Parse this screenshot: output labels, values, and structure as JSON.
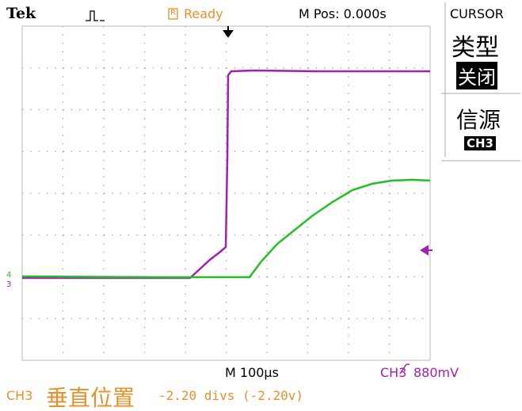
{
  "header": {
    "brand": "Tek",
    "run_icon": "R",
    "status": "Ready",
    "position": "M Pos: 0.000s"
  },
  "menu": {
    "title": "CURSOR",
    "items": [
      {
        "label": "类型",
        "value": "关闭"
      },
      {
        "label": "信源",
        "value": "CH3"
      }
    ]
  },
  "markers": {
    "ch4": "4",
    "ch3": "3"
  },
  "footer": {
    "timebase": "M 100µs",
    "trigger_channel": "CH3",
    "trigger_level": "880mV",
    "channel": "CH3",
    "setting": "垂直位置",
    "value": "-2.20 divs (-2.20v)"
  }
}
